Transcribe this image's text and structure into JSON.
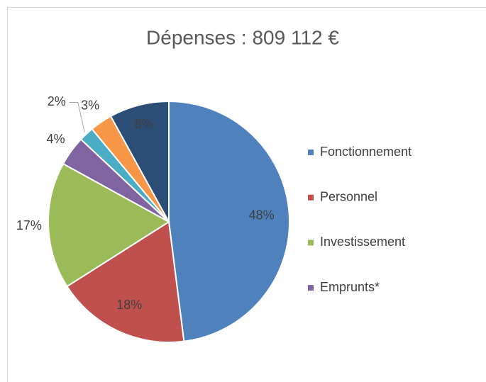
{
  "chart_data": {
    "type": "pie",
    "title": "Dépenses : 809 112 €",
    "categories": [
      "Fonctionnement",
      "Personnel",
      "Investissement",
      "Emprunts*",
      null,
      null,
      null
    ],
    "values": [
      48,
      18,
      17,
      4,
      2,
      3,
      8
    ],
    "value_labels": [
      "48%",
      "18%",
      "17%",
      "4%",
      "2%",
      "3%",
      "8%"
    ],
    "colors": [
      "#4f81bd",
      "#c0504d",
      "#9bbb59",
      "#8064a2",
      "#4bacc6",
      "#f79646",
      "#2c4d75"
    ],
    "legend": "right"
  }
}
